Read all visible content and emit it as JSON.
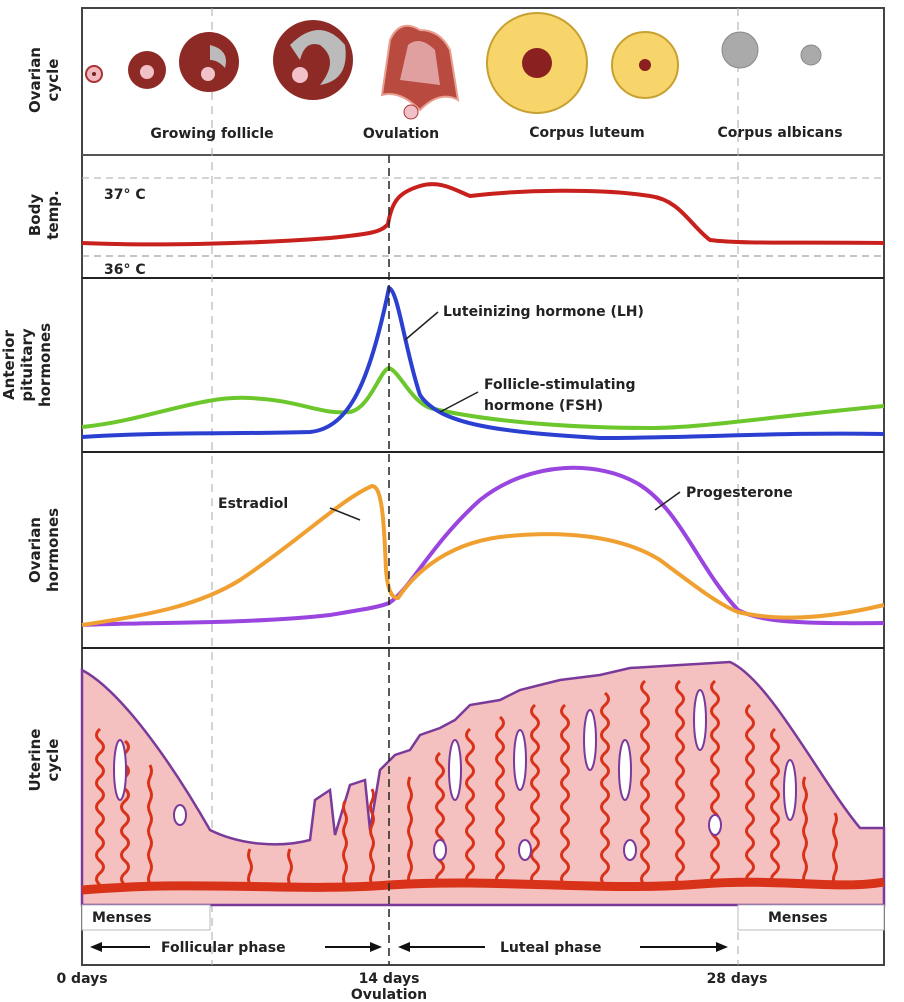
{
  "side_labels": {
    "ovarian_cycle": [
      "Ovarian",
      "cycle"
    ],
    "body_temp": [
      "Body",
      "temp."
    ],
    "pituitary": [
      "Anterior",
      "pituitary",
      "hormones"
    ],
    "ovarian_hormones": [
      "Ovarian",
      "hormones"
    ],
    "uterine": [
      "Uterine",
      "cycle"
    ]
  },
  "ovarian_stages": [
    "Growing follicle",
    "Ovulation",
    "Corpus luteum",
    "Corpus albicans"
  ],
  "temp_ticks": [
    "37° C",
    "36° C"
  ],
  "hormone_labels": {
    "lh": "Luteinizing hormone (LH)",
    "fsh": [
      "Follicle-stimulating",
      "hormone (FSH)"
    ],
    "estradiol": "Estradiol",
    "progesterone": "Progesterone"
  },
  "menses": [
    "Menses",
    "Menses"
  ],
  "phases": {
    "follicular": "Follicular phase",
    "luteal": "Luteal phase"
  },
  "day_labels": [
    "0 days",
    "14 days",
    "28 days"
  ],
  "ovulation_label": "Ovulation",
  "colors": {
    "temp": "#c8201c",
    "lh": "#2b3fd0",
    "fsh": "#6cc72c",
    "estradiol": "#f0a030",
    "progesterone": "#9a45e0",
    "endometrium": "#f5c0c0",
    "vessel": "#d83218"
  }
}
